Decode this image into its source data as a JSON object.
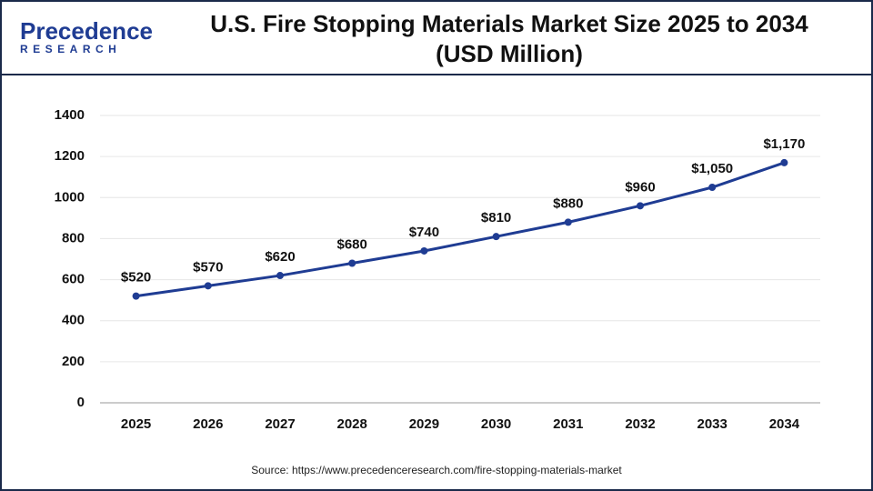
{
  "chart_data": {
    "type": "line",
    "brand": "Precedence",
    "brand_sub": "RESEARCH",
    "title": "U.S. Fire Stopping Materials Market Size 2025 to 2034 (USD Million)",
    "categories": [
      "2025",
      "2026",
      "2027",
      "2028",
      "2029",
      "2030",
      "2031",
      "2032",
      "2033",
      "2034"
    ],
    "values": [
      520,
      570,
      620,
      680,
      740,
      810,
      880,
      960,
      1050,
      1170
    ],
    "value_labels": [
      "$520",
      "$570",
      "$620",
      "$680",
      "$740",
      "$810",
      "$880",
      "$960",
      "$1,050",
      "$1,170"
    ],
    "color": "#1f3c93",
    "ylim": [
      0,
      1400
    ],
    "yticks": [
      0,
      200,
      400,
      600,
      800,
      1000,
      1200,
      1400
    ],
    "grid": true,
    "source": "Source: https://www.precedenceresearch.com/fire-stopping-materials-market"
  }
}
